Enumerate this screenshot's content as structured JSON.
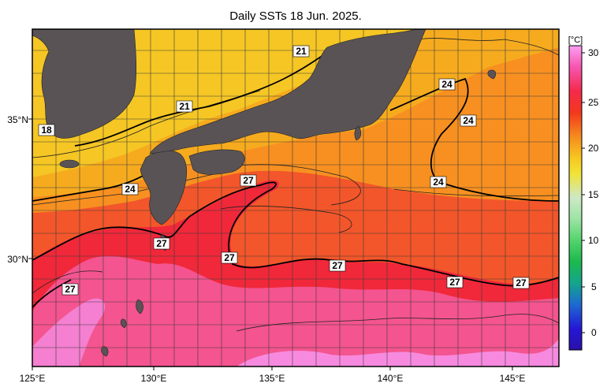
{
  "title": "Daily SSTs 18 Jun. 2025.",
  "colorbar": {
    "unit": "[°C]",
    "ticks": [
      "30",
      "25",
      "20",
      "15",
      "10",
      "5",
      "0"
    ],
    "colors": [
      "#f97cf1",
      "#f83a78",
      "#f3281c",
      "#f78a1f",
      "#f8c91f",
      "#f3e22e",
      "#c9e9c3",
      "#9be4a2",
      "#51d36a",
      "#18b84d",
      "#13a48e",
      "#1b66d1",
      "#2418d8",
      "#2a0fb0"
    ]
  },
  "axes": {
    "x_ticks": [
      "125°E",
      "130°E",
      "135°E",
      "140°E",
      "145°E"
    ],
    "y_ticks": [
      "35°N",
      "30°N"
    ]
  },
  "isotherm_labels": {
    "l21a": "21",
    "l21b": "21",
    "l18": "18",
    "l24a": "24",
    "l24b": "24",
    "l24c": "24",
    "l24d": "24",
    "l27a": "27",
    "l27b": "27",
    "l27c": "27",
    "l27d": "27",
    "l27e": "27",
    "l27f": "27",
    "l27g": "27"
  },
  "colors": {
    "land": "#595356",
    "cold": "#f5c624",
    "mid": "#f6a81e",
    "warm_orange": "#f58a22",
    "warm": "#f33f23",
    "hot_red": "#f0283a",
    "hot_pink": "#f55a9c",
    "very_hot": "#f88de6"
  }
}
